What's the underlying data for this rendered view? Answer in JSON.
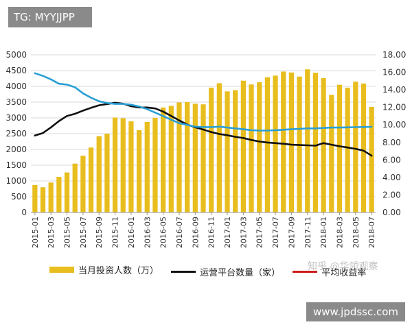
{
  "header": {
    "tag_text": "TG: MYYJJPP"
  },
  "watermark": {
    "zhihu": "知乎 @华领观察",
    "site": "www.jpdssc.com"
  },
  "chart_data": {
    "type": "bar",
    "categories": [
      "2015-01",
      "2015-02",
      "2015-03",
      "2015-04",
      "2015-05",
      "2015-06",
      "2015-07",
      "2015-08",
      "2015-09",
      "2015-10",
      "2015-11",
      "2015-12",
      "2016-01",
      "2016-02",
      "2016-03",
      "2016-04",
      "2016-05",
      "2016-06",
      "2016-07",
      "2016-08",
      "2016-09",
      "2016-10",
      "2016-11",
      "2016-12",
      "2017-01",
      "2017-02",
      "2017-03",
      "2017-04",
      "2017-05",
      "2017-06",
      "2017-07",
      "2017-08",
      "2017-09",
      "2017-10",
      "2017-11",
      "2017-12",
      "2018-01",
      "2018-02",
      "2018-03",
      "2018-04",
      "2018-05",
      "2018-06",
      "2018-07"
    ],
    "x_tick_labels": [
      "2015-01",
      "2015-03",
      "2015-05",
      "2015-07",
      "2015-09",
      "2015-11",
      "2016-01",
      "2016-03",
      "2016-05",
      "2016-07",
      "2016-09",
      "2016-11",
      "2017-01",
      "2017-03",
      "2017-05",
      "2017-07",
      "2017-09",
      "2017-11",
      "2018-01",
      "2018-03",
      "2018-05",
      "2018-07"
    ],
    "left_ticks": [
      "0",
      "500",
      "1000",
      "1500",
      "2000",
      "2500",
      "3000",
      "3500",
      "4000",
      "4500",
      "5000"
    ],
    "right_ticks": [
      "0.00",
      "2.00",
      "4.00",
      "6.00",
      "8.00",
      "10.00",
      "12.00",
      "14.00",
      "16.00",
      "18.00"
    ],
    "ylim_left": [
      0,
      5000
    ],
    "ylim_right": [
      0,
      18
    ],
    "series": [
      {
        "name": "当月投资人数（万）",
        "axis": "left",
        "kind": "bar",
        "color": "#e8bd1e",
        "values": [
          870,
          800,
          950,
          1130,
          1270,
          1550,
          1800,
          2060,
          2420,
          2500,
          3010,
          2990,
          2890,
          2610,
          2870,
          3000,
          3330,
          3380,
          3490,
          3500,
          3450,
          3430,
          3960,
          4100,
          3840,
          3880,
          4180,
          4060,
          4130,
          4290,
          4340,
          4470,
          4440,
          4310,
          4540,
          4430,
          4260,
          3730,
          4050,
          3960,
          4150,
          4090,
          3350
        ]
      },
      {
        "name": "运营平台数量（家）",
        "axis": "left",
        "kind": "line",
        "color": "#111111",
        "values": [
          2440,
          2520,
          2700,
          2900,
          3060,
          3130,
          3230,
          3320,
          3400,
          3440,
          3480,
          3450,
          3370,
          3330,
          3330,
          3300,
          3200,
          3060,
          2920,
          2790,
          2700,
          2630,
          2550,
          2490,
          2450,
          2400,
          2360,
          2300,
          2250,
          2220,
          2200,
          2180,
          2150,
          2140,
          2130,
          2120,
          2200,
          2150,
          2100,
          2060,
          2020,
          1960,
          1800
        ]
      },
      {
        "name": "平均收益率",
        "axis": "right",
        "kind": "line",
        "color": "#2a9fd6",
        "values": [
          15.9,
          15.6,
          15.2,
          14.7,
          14.6,
          14.3,
          13.6,
          13.1,
          12.7,
          12.5,
          12.4,
          12.4,
          12.3,
          12.1,
          11.8,
          11.4,
          11.0,
          10.6,
          10.2,
          10.0,
          9.8,
          9.75,
          9.75,
          9.8,
          9.7,
          9.6,
          9.5,
          9.4,
          9.35,
          9.35,
          9.4,
          9.45,
          9.5,
          9.55,
          9.6,
          9.6,
          9.65,
          9.7,
          9.7,
          9.72,
          9.74,
          9.76,
          9.78
        ]
      }
    ],
    "legend": [
      {
        "label": "当月投资人数（万）",
        "color": "#e8bd1e",
        "shape": "bar"
      },
      {
        "label": "运营平台数量（家）",
        "color": "#111111",
        "shape": "line"
      },
      {
        "label": "平均收益率",
        "color": "#cc1b1b",
        "shape": "line"
      }
    ]
  }
}
